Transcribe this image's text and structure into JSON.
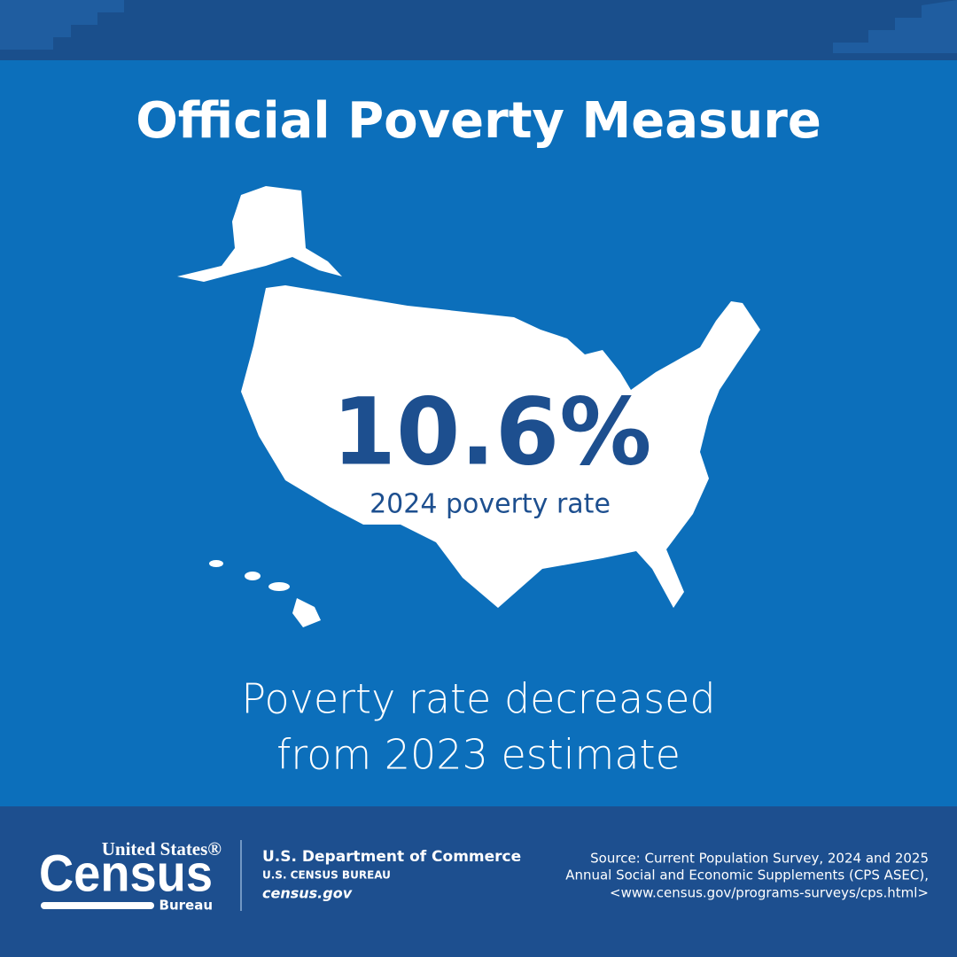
{
  "header": {
    "title": "Official Poverty Measure"
  },
  "stat": {
    "value": "10.6%",
    "caption": "2024 poverty rate"
  },
  "summary": {
    "lines": [
      "Poverty rate decreased",
      "from 2023 estimate"
    ]
  },
  "footer": {
    "logo": {
      "top": "United States®",
      "main": "Census",
      "bottom": "Bureau"
    },
    "department": {
      "name": "U.S. Department of Commerce",
      "bureau": "U.S. CENSUS BUREAU",
      "site": "census.gov"
    },
    "source": [
      "Source: Current Population Survey, 2024 and 2025",
      "Annual Social and Economic Supplements (CPS ASEC),",
      "<www.census.gov/programs-surveys/cps.html>"
    ]
  }
}
